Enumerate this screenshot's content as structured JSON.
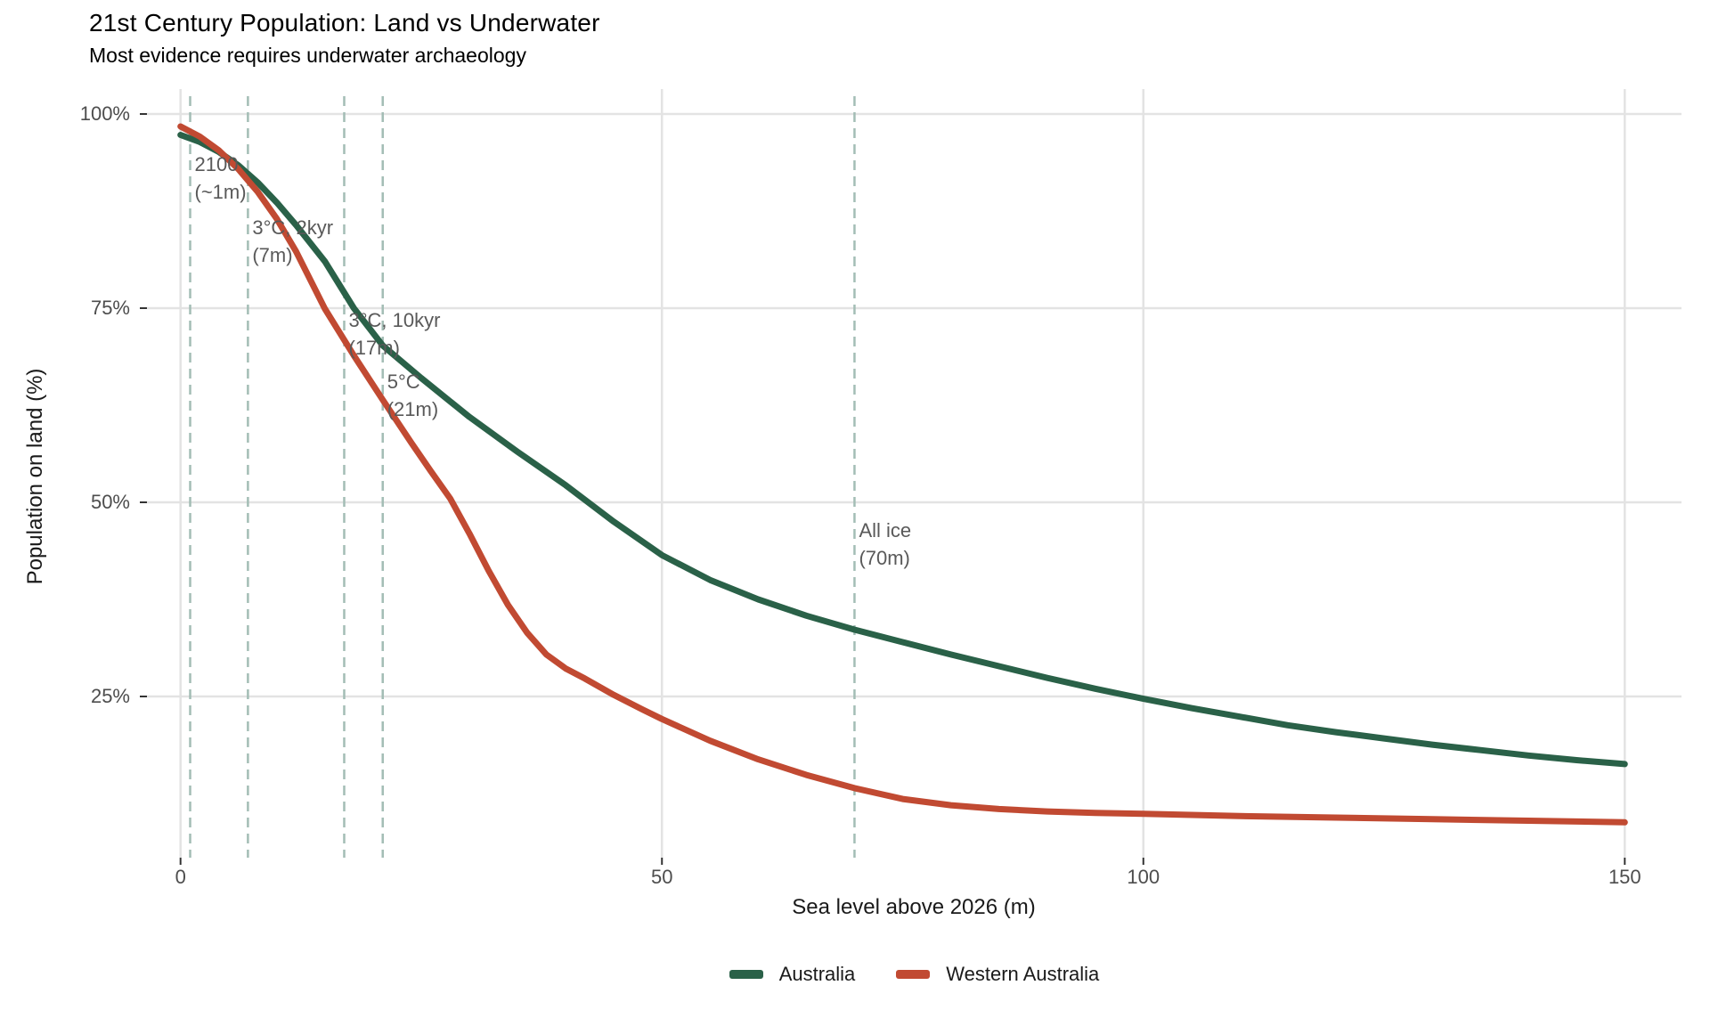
{
  "chart": {
    "title": "21st Century Population: Land vs Underwater",
    "subtitle": "Most evidence requires underwater archaeology",
    "colors": {
      "australia": "#2a6148",
      "western_australia": "#c14a32",
      "gridline": "#e3e3e3",
      "dashed_guide": "#a3bdb5",
      "tick_mark": "#333333",
      "annotation_text": "#595959",
      "tick_text": "#4d4d4d",
      "axis_title_text": "#1a1a1a",
      "background": "#ffffff"
    }
  },
  "chart_data": {
    "type": "line",
    "title": "21st Century Population: Land vs Underwater",
    "subtitle": "Most evidence requires underwater archaeology",
    "xlabel": "Sea level above 2026 (m)",
    "ylabel": "Population on land (%)",
    "x_ticks": [
      0,
      50,
      100,
      150
    ],
    "x_tick_labels": [
      "0",
      "50",
      "100",
      "150"
    ],
    "y_ticks_pct": [
      25,
      50,
      75,
      100
    ],
    "y_tick_labels": [
      "25%",
      "50%",
      "75%",
      "100%"
    ],
    "xlim": [
      0,
      150
    ],
    "ylim_pct": [
      4,
      103
    ],
    "grid": "major-only",
    "legend_position": "bottom-center",
    "series": [
      {
        "name": "Australia",
        "color": "#2a6148",
        "points": [
          [
            0,
            97.3
          ],
          [
            2,
            96.4
          ],
          [
            4,
            95.1
          ],
          [
            6,
            93.4
          ],
          [
            8,
            91.2
          ],
          [
            10,
            88.6
          ],
          [
            12,
            85.7
          ],
          [
            15,
            81.0
          ],
          [
            18,
            75.0
          ],
          [
            21,
            70.2
          ],
          [
            25,
            66.0
          ],
          [
            30,
            61.0
          ],
          [
            35,
            56.5
          ],
          [
            40,
            52.2
          ],
          [
            45,
            47.5
          ],
          [
            50,
            43.2
          ],
          [
            55,
            40.0
          ],
          [
            60,
            37.5
          ],
          [
            65,
            35.4
          ],
          [
            70,
            33.6
          ],
          [
            75,
            32.0
          ],
          [
            80,
            30.4
          ],
          [
            85,
            28.9
          ],
          [
            90,
            27.4
          ],
          [
            95,
            26.0
          ],
          [
            100,
            24.7
          ],
          [
            105,
            23.5
          ],
          [
            110,
            22.4
          ],
          [
            115,
            21.3
          ],
          [
            120,
            20.4
          ],
          [
            125,
            19.6
          ],
          [
            130,
            18.8
          ],
          [
            135,
            18.1
          ],
          [
            140,
            17.4
          ],
          [
            145,
            16.8
          ],
          [
            150,
            16.3
          ]
        ]
      },
      {
        "name": "Western Australia",
        "color": "#c14a32",
        "points": [
          [
            0,
            98.4
          ],
          [
            2,
            97.1
          ],
          [
            4,
            95.3
          ],
          [
            6,
            92.9
          ],
          [
            8,
            90.0
          ],
          [
            10,
            86.5
          ],
          [
            12,
            82.3
          ],
          [
            15,
            74.9
          ],
          [
            18,
            68.9
          ],
          [
            21,
            63.2
          ],
          [
            24,
            57.6
          ],
          [
            26,
            54.0
          ],
          [
            28,
            50.5
          ],
          [
            30,
            46.0
          ],
          [
            32,
            41.2
          ],
          [
            34,
            36.8
          ],
          [
            36,
            33.2
          ],
          [
            38,
            30.4
          ],
          [
            40,
            28.6
          ],
          [
            42,
            27.3
          ],
          [
            45,
            25.2
          ],
          [
            48,
            23.3
          ],
          [
            50,
            22.1
          ],
          [
            55,
            19.3
          ],
          [
            60,
            16.9
          ],
          [
            65,
            14.9
          ],
          [
            70,
            13.2
          ],
          [
            75,
            11.8
          ],
          [
            80,
            11.0
          ],
          [
            85,
            10.5
          ],
          [
            90,
            10.2
          ],
          [
            95,
            10.0
          ],
          [
            100,
            9.9
          ],
          [
            110,
            9.6
          ],
          [
            120,
            9.4
          ],
          [
            130,
            9.2
          ],
          [
            140,
            9.0
          ],
          [
            150,
            8.8
          ]
        ]
      }
    ],
    "annotations": [
      {
        "lines": [
          "2100",
          "(~1m)"
        ],
        "x_m": 1,
        "label_top_pct": 93.5
      },
      {
        "lines": [
          "3°C, 2kyr",
          "(7m)"
        ],
        "x_m": 7,
        "label_top_pct": 85.4
      },
      {
        "lines": [
          "3°C, 10kyr",
          "(17m)"
        ],
        "x_m": 17,
        "label_top_pct": 73.4
      },
      {
        "lines": [
          "5°C",
          "(21m)"
        ],
        "x_m": 21,
        "label_top_pct": 65.5
      },
      {
        "lines": [
          "All ice",
          "(70m)"
        ],
        "x_m": 70,
        "label_top_pct": 46.4
      }
    ]
  }
}
